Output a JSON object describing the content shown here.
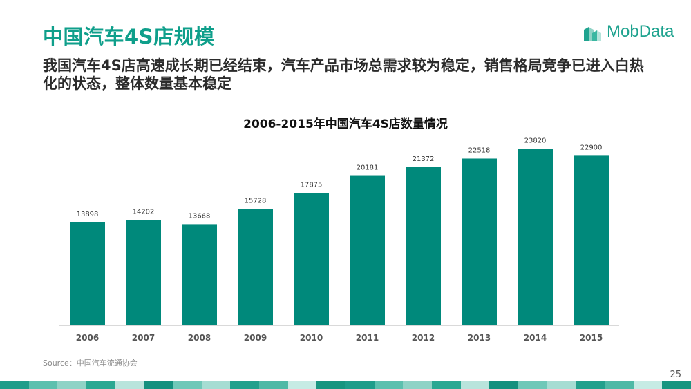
{
  "slide": {
    "title": "中国汽车4S店规模",
    "subtitle": "我国汽车4S店高速成长期已经结束，汽车产品市场总需求较为稳定，销售格局竞争已进入白热化的状态，整体数量基本稳定",
    "source": "Source：中国汽车流通协会",
    "page_number": "25",
    "logo_text": "MobData",
    "logo_icon": "building-blocks-icon",
    "colors": {
      "accent": "#0f9f8b",
      "bar": "#00897b"
    }
  },
  "chart_data": {
    "type": "bar",
    "title": "2006-2015年中国汽车4S店数量情况",
    "categories": [
      "2006",
      "2007",
      "2008",
      "2009",
      "2010",
      "2011",
      "2012",
      "2013",
      "2014",
      "2015"
    ],
    "values": [
      13898,
      14202,
      13668,
      15728,
      17875,
      20181,
      21372,
      22518,
      23820,
      22900
    ],
    "xlabel": "",
    "ylabel": "",
    "ylim": [
      0,
      24800
    ],
    "grid": false,
    "legend": "none",
    "data_labels": true
  }
}
